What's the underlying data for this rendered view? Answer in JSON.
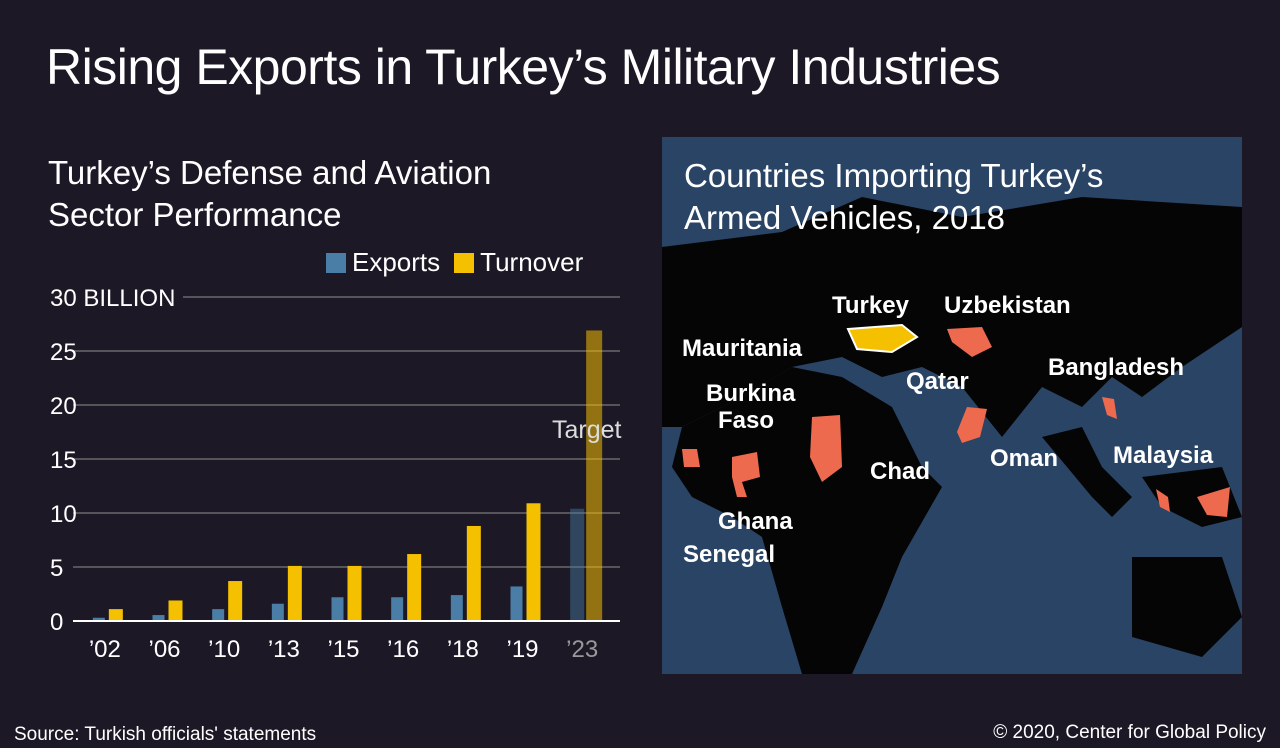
{
  "title": "Rising Exports in Turkey’s Military Industries",
  "chart_data": {
    "type": "bar",
    "title": "Turkey’s Defense and Aviation Sector Performance",
    "title_lines": [
      "Turkey’s Defense and Aviation",
      "Sector Performance"
    ],
    "categories": [
      "’02",
      "’06",
      "’10",
      "’13",
      "’15",
      "’16",
      "’18",
      "’19",
      "’23"
    ],
    "series": [
      {
        "name": "Exports",
        "color": "#4a7ea6",
        "values": [
          0.3,
          0.55,
          1.1,
          1.6,
          2.2,
          2.2,
          2.4,
          3.2,
          10.4
        ]
      },
      {
        "name": "Turnover",
        "color": "#f5c000",
        "values": [
          1.1,
          1.9,
          3.7,
          5.1,
          5.1,
          6.2,
          8.8,
          10.9,
          26.9
        ]
      }
    ],
    "yticks": [
      "0",
      "5",
      "10",
      "15",
      "20",
      "25",
      "30 BILLION"
    ],
    "ylim": [
      0,
      30
    ],
    "annotation": "Target",
    "legend_position": "top-right",
    "grid": true
  },
  "map": {
    "title_lines": [
      "Countries Importing Turkey’s",
      "Armed Vehicles, 2018"
    ],
    "labels": [
      "Turkey",
      "Uzbekistan",
      "Mauritania",
      "Qatar",
      "Bangladesh",
      "Burkina Faso",
      "Oman",
      "Malaysia",
      "Chad",
      "Ghana",
      "Senegal"
    ]
  },
  "source": "Source: Turkish officials' statements",
  "copyright": "© 2020, Center for Global Policy"
}
